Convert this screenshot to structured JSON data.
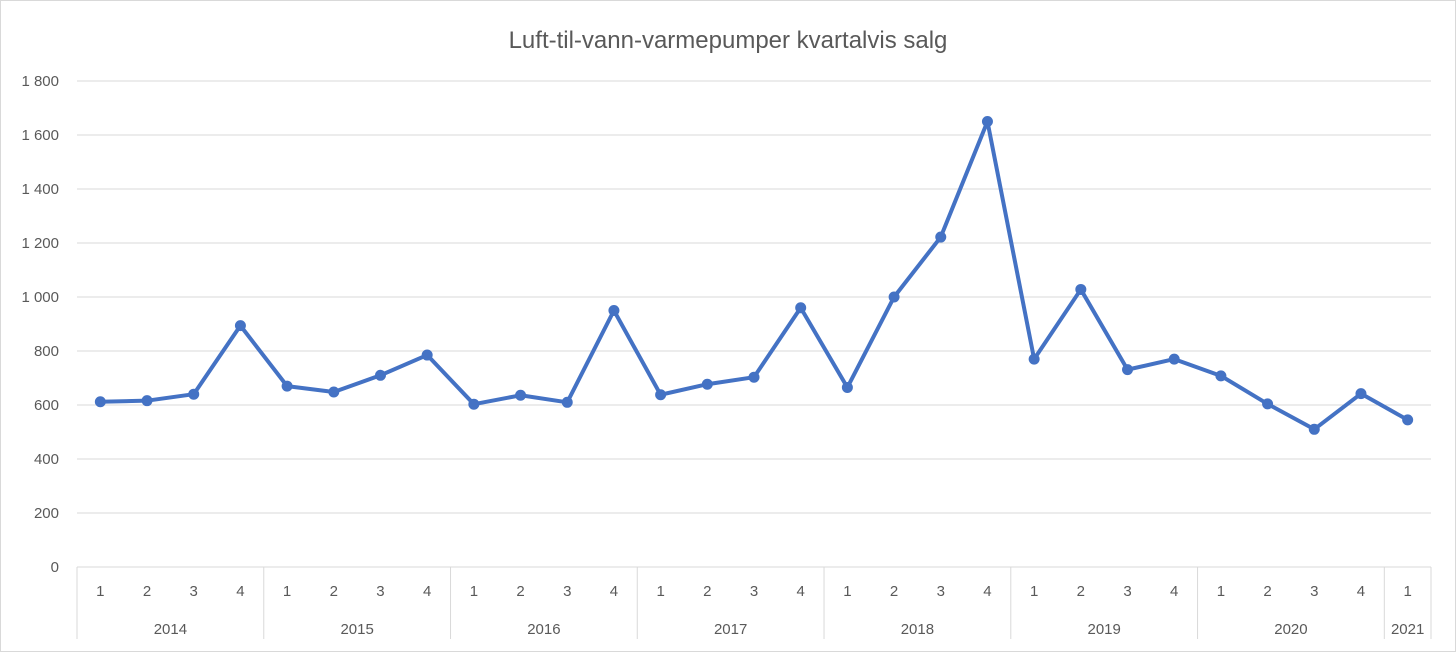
{
  "chart_data": {
    "type": "line",
    "title": "Luft-til-vann-varmepumper kvartalvis salg",
    "xlabel": "",
    "ylabel": "",
    "ylim": [
      0,
      1800
    ],
    "y_ticks": [
      {
        "value": 0,
        "label": "0"
      },
      {
        "value": 200,
        "label": "200"
      },
      {
        "value": 400,
        "label": "400"
      },
      {
        "value": 600,
        "label": "600"
      },
      {
        "value": 800,
        "label": "800"
      },
      {
        "value": 1000,
        "label": "1 000"
      },
      {
        "value": 1200,
        "label": "1 200"
      },
      {
        "value": 1400,
        "label": "1 400"
      },
      {
        "value": 1600,
        "label": "1 600"
      },
      {
        "value": 1800,
        "label": "1 800"
      }
    ],
    "grid": true,
    "legend": "none",
    "groups": [
      {
        "label": "2014",
        "quarters": [
          "1",
          "2",
          "3",
          "4"
        ]
      },
      {
        "label": "2015",
        "quarters": [
          "1",
          "2",
          "3",
          "4"
        ]
      },
      {
        "label": "2016",
        "quarters": [
          "1",
          "2",
          "3",
          "4"
        ]
      },
      {
        "label": "2017",
        "quarters": [
          "1",
          "2",
          "3",
          "4"
        ]
      },
      {
        "label": "2018",
        "quarters": [
          "1",
          "2",
          "3",
          "4"
        ]
      },
      {
        "label": "2019",
        "quarters": [
          "1",
          "2",
          "3",
          "4"
        ]
      },
      {
        "label": "2020",
        "quarters": [
          "1",
          "2",
          "3",
          "4"
        ]
      },
      {
        "label": "2021",
        "quarters": [
          "1"
        ]
      }
    ],
    "series": [
      {
        "values": [
          612,
          616,
          640,
          894,
          670,
          648,
          710,
          785,
          603,
          636,
          610,
          950,
          638,
          677,
          703,
          960,
          665,
          1000,
          1222,
          1650,
          770,
          1028,
          731,
          770,
          708,
          604,
          510,
          642,
          545
        ]
      }
    ],
    "colors": {
      "series": "#4472c4",
      "grid": "#d9d9d9",
      "text": "#595959"
    }
  }
}
